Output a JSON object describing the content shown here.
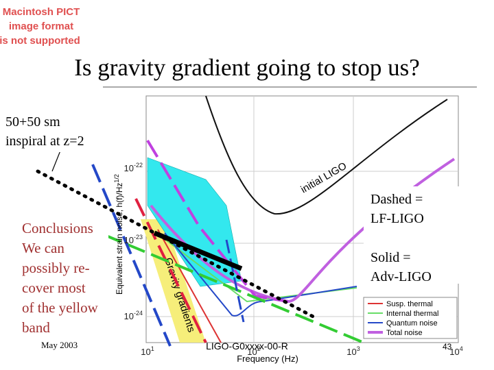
{
  "placeholder": [
    "Macintosh PICT",
    "image format",
    "is not supported"
  ],
  "title": "Is gravity gradient going to stop us?",
  "inspiral_note": [
    "50+50 sm",
    "inspiral at z=2"
  ],
  "conclusions": [
    "Conclusions",
    "We can",
    "possibly re-",
    "cover  most",
    "of the yellow",
    "band"
  ],
  "dashed_note": [
    "Dashed =",
    "LF-LIGO"
  ],
  "solid_note": [
    "Solid =",
    "Adv-LIGO"
  ],
  "footer": {
    "date": "May 2003",
    "doc_id": "LIGO-G0xxxx-00-R",
    "page": "43"
  },
  "plot": {
    "x_label": "Frequency (Hz)",
    "y_label": "Equivalent strain noise, h(f)/Hz",
    "y_label_exp": "1/2",
    "curve_label": "initial LIGO",
    "band_label": "Gravity gradients",
    "x_ticks": [
      {
        "base": "10",
        "exp": "1"
      },
      {
        "base": "10",
        "exp": "2"
      },
      {
        "base": "10",
        "exp": "3"
      },
      {
        "base": "10",
        "exp": "4"
      }
    ],
    "y_ticks": [
      {
        "base": "10",
        "exp": "-22"
      },
      {
        "base": "10",
        "exp": "-23"
      },
      {
        "base": "10",
        "exp": "-24"
      }
    ],
    "legend": [
      "Susp. thermal",
      "Internal thermal",
      "Quantum noise",
      "Total noise"
    ]
  }
}
